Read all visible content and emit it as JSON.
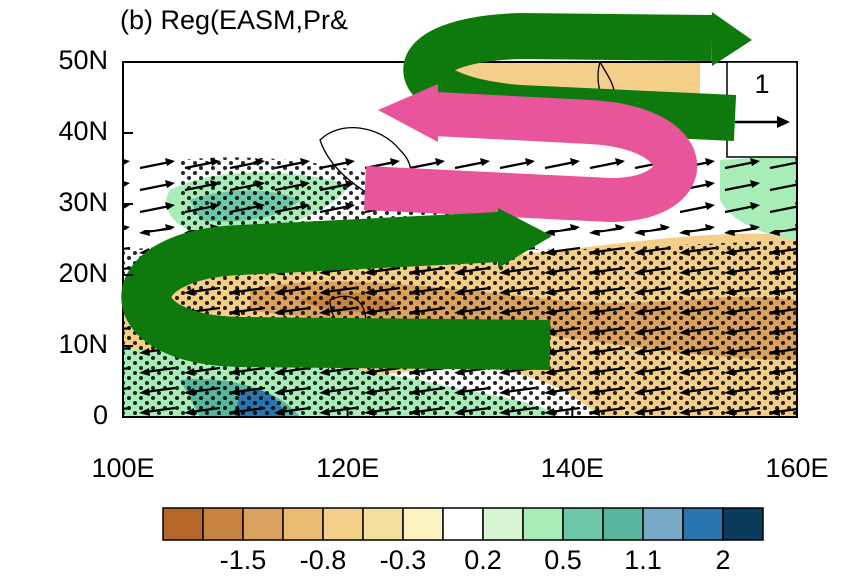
{
  "title": "(b) Reg(EASM,Pr&",
  "map": {
    "xlim": [
      100,
      160
    ],
    "xticks": [
      {
        "value": 100,
        "label": "100E"
      },
      {
        "value": 120,
        "label": "120E"
      },
      {
        "value": 140,
        "label": "140E"
      },
      {
        "value": 160,
        "label": "160E"
      }
    ],
    "ylim": [
      0,
      50
    ],
    "yticks": [
      {
        "value": 0,
        "label": "0"
      },
      {
        "value": 10,
        "label": "10N"
      },
      {
        "value": 20,
        "label": "20N"
      },
      {
        "value": 30,
        "label": "30N"
      },
      {
        "value": 40,
        "label": "40N"
      },
      {
        "value": 50,
        "label": "50N"
      }
    ]
  },
  "reference_vector": {
    "label": "1"
  },
  "colorbar": {
    "colors": [
      "#b5672a",
      "#c98340",
      "#dba15e",
      "#e9bb73",
      "#f3cf8a",
      "#f5dfa0",
      "#fbf3c2",
      "#ffffff",
      "#d8f6d4",
      "#a8ecb8",
      "#6cc7a8",
      "#56b79e",
      "#7aa9c8",
      "#2a74b0",
      "#0b3a5c"
    ],
    "ticks": [
      {
        "value": -1.5,
        "label": "-1.5"
      },
      {
        "value": -0.8,
        "label": "-0.8"
      },
      {
        "value": -0.3,
        "label": "-0.3"
      },
      {
        "value": 0.2,
        "label": "0.2"
      },
      {
        "value": 0.5,
        "label": "0.5"
      },
      1.1,
      2
    ]
  }
}
